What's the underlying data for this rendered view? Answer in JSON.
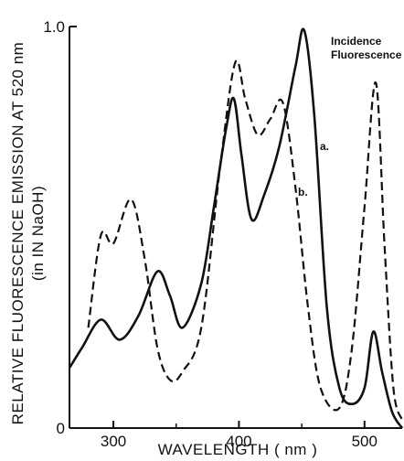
{
  "chart_data": {
    "type": "line",
    "xlabel": "WAVELENGTH ( nm )",
    "ylabel": "RELATIVE FLUORESCENCE EMISSION AT 520 nm",
    "ylabel_sub": "(in IN NaOH)",
    "annotation_line1": "Incidence",
    "annotation_line2": "Fluorescence",
    "xlim": [
      265,
      530
    ],
    "ylim": [
      0,
      1.0
    ],
    "x_ticks": [
      300,
      400,
      500
    ],
    "x_tick_labels": [
      "300",
      "400",
      "500"
    ],
    "y_ticks": [
      0,
      1.0
    ],
    "y_tick_labels": [
      "0",
      "1.0"
    ],
    "grid": false,
    "series": [
      {
        "name": "a.",
        "style": "solid",
        "color": "#111111",
        "x": [
          265,
          275,
          290,
          305,
          320,
          335,
          345,
          355,
          370,
          380,
          390,
          396,
          402,
          410,
          420,
          432,
          445,
          452,
          460,
          470,
          480,
          490,
          500,
          507,
          514,
          522,
          530
        ],
        "y": [
          0.15,
          0.2,
          0.27,
          0.22,
          0.28,
          0.39,
          0.33,
          0.25,
          0.36,
          0.55,
          0.75,
          0.82,
          0.68,
          0.52,
          0.58,
          0.7,
          0.9,
          0.99,
          0.78,
          0.3,
          0.1,
          0.06,
          0.1,
          0.24,
          0.14,
          0.04,
          0.0
        ]
      },
      {
        "name": "b.",
        "style": "dashed",
        "color": "#111111",
        "x": [
          280,
          290,
          300,
          314,
          325,
          335,
          345,
          355,
          370,
          385,
          397,
          405,
          415,
          425,
          435,
          445,
          455,
          465,
          480,
          490,
          500,
          509,
          516,
          523,
          530
        ],
        "y": [
          0.25,
          0.48,
          0.46,
          0.57,
          0.42,
          0.2,
          0.12,
          0.14,
          0.25,
          0.65,
          0.91,
          0.82,
          0.73,
          0.77,
          0.81,
          0.6,
          0.3,
          0.1,
          0.05,
          0.2,
          0.55,
          0.86,
          0.45,
          0.1,
          0.02
        ]
      }
    ]
  }
}
